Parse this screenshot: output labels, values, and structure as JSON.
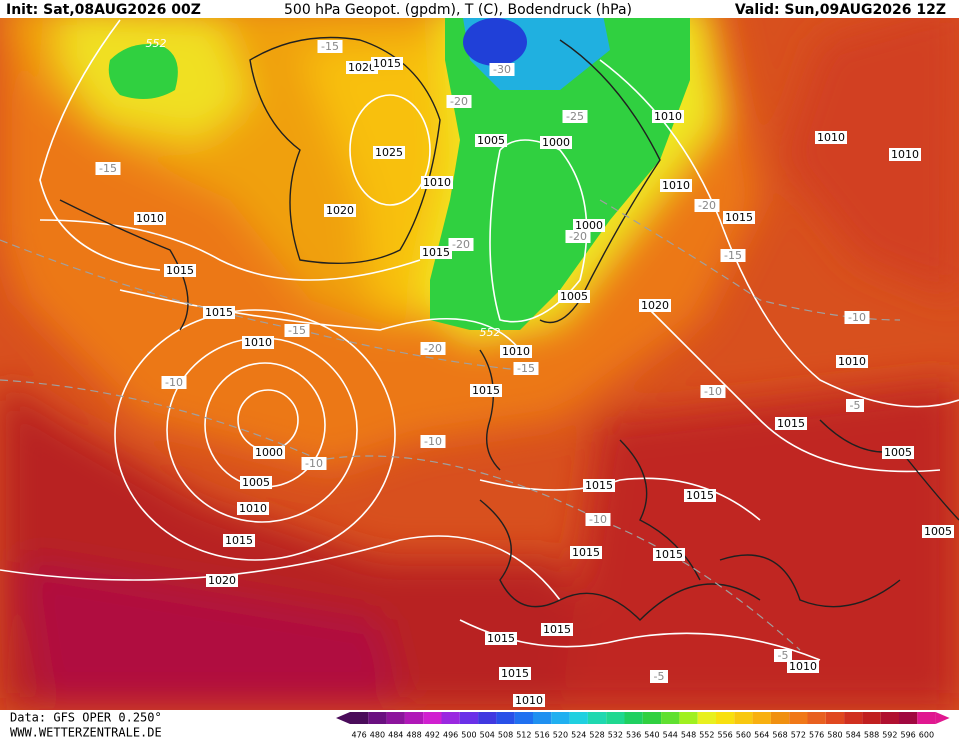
{
  "header": {
    "init": "Init: Sat,08AUG2026 00Z",
    "title": "500 hPa Geopot. (gpdm), T (C), Bodendruck (hPa)",
    "valid": "Valid: Sun,09AUG2026 12Z"
  },
  "footer": {
    "data": "Data: GFS OPER 0.250°",
    "site": "WWW.WETTERZENTRALE.DE"
  },
  "pressure_labels": [
    "1020",
    "1015",
    "1025",
    "1010",
    "1020",
    "1015",
    "1005",
    "1000",
    "1010",
    "1010",
    "1015",
    "1010",
    "1010",
    "1000",
    "1005",
    "1020",
    "1010",
    "1015",
    "1010",
    "1015",
    "1015",
    "1010",
    "1000",
    "1005",
    "1010",
    "1015",
    "1020",
    "1010",
    "1015",
    "1005",
    "1005",
    "1015",
    "1015",
    "1015",
    "1015",
    "1015",
    "1015",
    "1015",
    "1010",
    "1010"
  ],
  "temperature_labels": [
    "-15",
    "-30",
    "-20",
    "-25",
    "-15",
    "-20",
    "-15",
    "-20",
    "-20",
    "-15",
    "-20",
    "-15",
    "-10",
    "-10",
    "-10",
    "-5",
    "-10",
    "-10",
    "-10",
    "-5",
    "-5"
  ],
  "geopotential_labels": [
    "552",
    "552"
  ],
  "colorbar": {
    "labels": [
      "476",
      "480",
      "484",
      "488",
      "492",
      "496",
      "500",
      "504",
      "508",
      "512",
      "516",
      "520",
      "524",
      "528",
      "532",
      "536",
      "540",
      "544",
      "548",
      "552",
      "556",
      "560",
      "564",
      "568",
      "572",
      "576",
      "580",
      "584",
      "588",
      "592",
      "596",
      "600"
    ],
    "colors": [
      "#4a0c5a",
      "#6a1080",
      "#8c149c",
      "#b018b8",
      "#d020d0",
      "#9a28e0",
      "#6a30e8",
      "#4038e0",
      "#2850e8",
      "#2070f0",
      "#2090f0",
      "#20b0f0",
      "#20d0e0",
      "#20d8b0",
      "#20d890",
      "#20d060",
      "#30d040",
      "#60e030",
      "#a0f020",
      "#e8f020",
      "#f8e010",
      "#f8c810",
      "#f8b010",
      "#f09010",
      "#f07818",
      "#e86020",
      "#e04820",
      "#d03020",
      "#c02020",
      "#b01030",
      "#a00840",
      "#e01890"
    ]
  }
}
